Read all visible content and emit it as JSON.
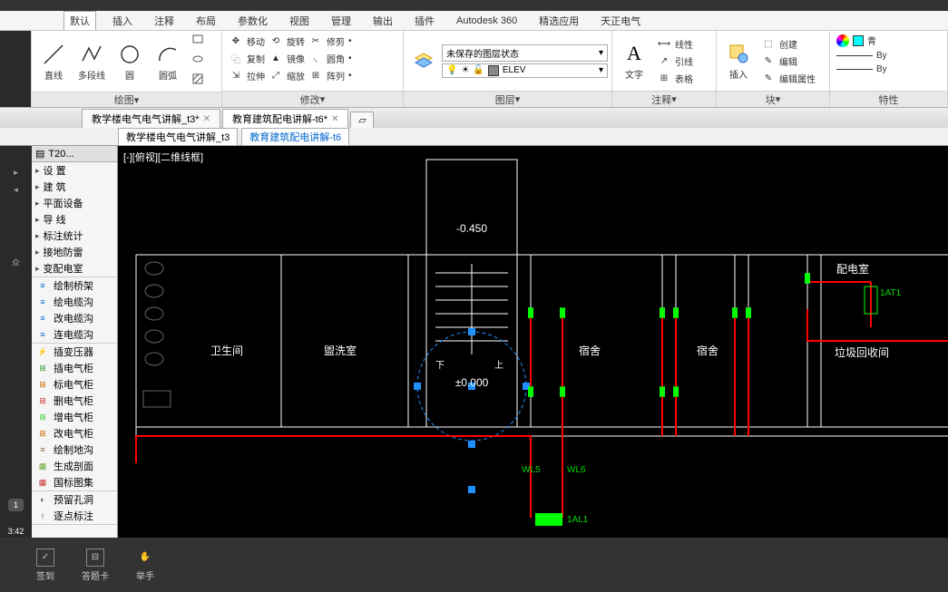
{
  "menu": {
    "active": "默认",
    "items": [
      "插入",
      "注释",
      "布局",
      "参数化",
      "视图",
      "管理",
      "输出",
      "插件",
      "Autodesk 360",
      "精选应用",
      "天正电气"
    ]
  },
  "ribbon": {
    "draw": {
      "label": "绘图",
      "line": "直线",
      "polyline": "多段线",
      "circle": "圆",
      "arc": "圆弧"
    },
    "modify": {
      "label": "修改",
      "move": "移动",
      "rotate": "旋转",
      "trim": "修剪",
      "copy": "复制",
      "mirror": "镜像",
      "fillet": "圆角",
      "stretch": "拉伸",
      "scale": "缩放",
      "array": "阵列"
    },
    "layer": {
      "label": "图层",
      "state": "未保存的图层状态",
      "current": "ELEV"
    },
    "annot": {
      "label": "注释",
      "text": "文字",
      "linear": "线性",
      "leader": "引线",
      "table": "表格"
    },
    "block": {
      "label": "块",
      "insert": "插入",
      "create": "创建",
      "edit": "编辑",
      "editattr": "编辑属性"
    },
    "prop": {
      "label": "特性",
      "color": "青",
      "bylayer1": "By",
      "bylayer2": "By"
    }
  },
  "doctabs": {
    "t1": "教学楼电气电气讲解_t3*",
    "t2": "教育建筑配电讲解-t6*"
  },
  "subtabs": {
    "t1": "教学楼电气电气讲解_t3",
    "t2": "教育建筑配电讲解-t6"
  },
  "toolpanel": {
    "title": "T20...",
    "main": [
      "设    置",
      "建    筑",
      "平面设备",
      "导    线",
      "标注统计",
      "接地防雷",
      "变配电室"
    ],
    "tools": [
      "绘制桥架",
      "绘电缆沟",
      "改电缆沟",
      "连电缆沟"
    ],
    "tools2": [
      "插变压器",
      "插电气柜",
      "标电气柜",
      "删电气柜",
      "增电气柜",
      "改电气柜",
      "绘制地沟",
      "生成剖面",
      "国标图集"
    ],
    "tools3": [
      "预留孔洞",
      "逐点标注"
    ]
  },
  "canvas": {
    "viewlabel": "[-][俯视][二维线框]",
    "level": "-0.450",
    "zero": "±0.000",
    "rooms": {
      "toilet": "卫生间",
      "wash": "盥洗室",
      "dorm1": "宿舍",
      "dorm2": "宿舍",
      "elec": "配电室",
      "trash": "垃圾回收间",
      "down": "下",
      "up": "上"
    },
    "wires": {
      "wl5": "WL5",
      "wl6": "WL6",
      "al1": "1AL1",
      "at1": "1AT1"
    },
    "colors": {
      "wall": "#ffffff",
      "wire": "#ff0000",
      "node": "#00ff00",
      "sel": "#2090ff",
      "txt": "#00dd00"
    }
  },
  "bottombar": {
    "b1": "签到",
    "b2": "答题卡",
    "b3": "举手"
  },
  "time": "3:42"
}
